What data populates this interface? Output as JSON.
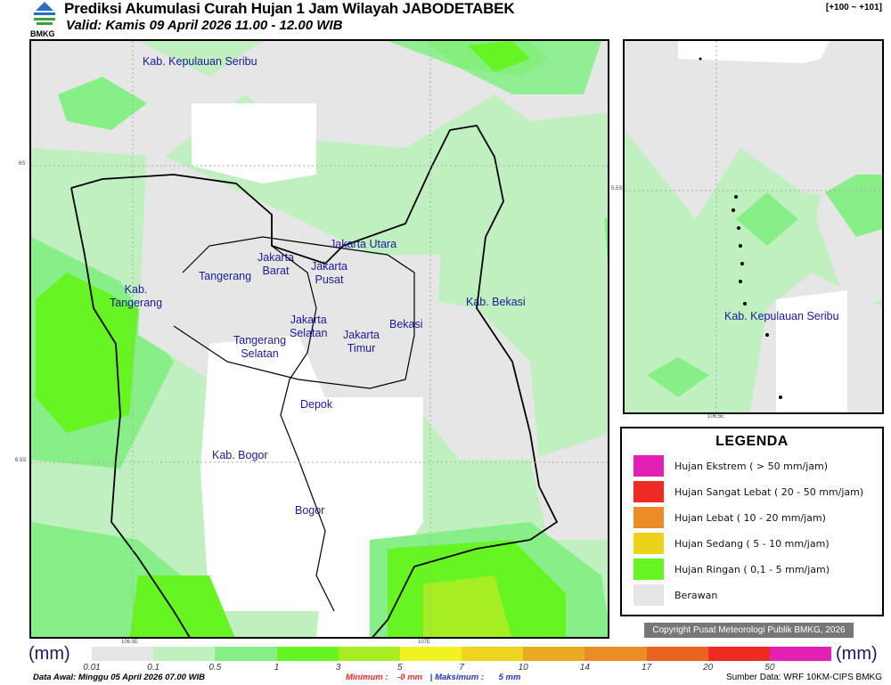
{
  "header": {
    "title": "Prediksi Akumulasi Curah Hujan 1 Jam Wilayah JABODETABEK",
    "valid": "Valid: Kamis 09 April 2026 11.00 - 12.00 WIB",
    "code": "[+100 ~ +101]",
    "logo_text": "BMKG"
  },
  "main_map": {
    "regions": [
      "Kab. Kepulauan Seribu",
      "Jakarta Utara",
      "Jakarta\nBarat",
      "Jakarta\nPusat",
      "Tangerang",
      "Kab.\nTangerang",
      "Jakarta\nSelatan",
      "Jakarta\nTimur",
      "Bekasi",
      "Kab. Bekasi",
      "Tangerang\nSelatan",
      "Depok",
      "Kab. Bogor",
      "Bogor"
    ],
    "lat_ticks": [
      "6S",
      "6.5S"
    ],
    "lon_ticks": [
      "106.5E",
      "107E"
    ]
  },
  "inset_map": {
    "region": "Kab. Kepulauan Seribu",
    "lat_tick": "5.5S",
    "lon_tick": "106.5E"
  },
  "legend": {
    "title": "LEGENDA",
    "items": [
      {
        "label": "Hujan Ekstrem ( > 50 mm/jam)",
        "color": "#e41fb4"
      },
      {
        "label": "Hujan Sangat Lebat ( 20 - 50 mm/jam)",
        "color": "#ee2a22"
      },
      {
        "label": "Hujan Lebat ( 10 - 20 mm/jam)",
        "color": "#ec8c24"
      },
      {
        "label": "Hujan Sedang ( 5 - 10 mm/jam)",
        "color": "#eed21a"
      },
      {
        "label": "Hujan Ringan ( 0,1 - 5 mm/jam)",
        "color": "#66f422"
      },
      {
        "label": "Berawan",
        "color": "#e6e6e6"
      }
    ]
  },
  "copyright": "Copyright Pusat Meteorologi Publik BMKG, 2026",
  "colorbar": {
    "unit": "(mm)",
    "labels": [
      "0.01",
      "0.1",
      "0.5",
      "1",
      "3",
      "5",
      "7",
      "10",
      "14",
      "17",
      "20",
      "50"
    ],
    "colors": [
      "#e6e6e6",
      "#c0f0c0",
      "#88ee88",
      "#66f422",
      "#a6ee22",
      "#f2f222",
      "#f0d420",
      "#e8aa20",
      "#ec8c24",
      "#e86420",
      "#ee2a22",
      "#e41fb4"
    ]
  },
  "footer": {
    "data_awal": "Data Awal: Minggu 05 April 2026 07.00 WIB",
    "min_label": "Minimum :",
    "min_value": "-0 mm",
    "sep": "|",
    "max_label": "Maksimum :",
    "max_value": "5 mm",
    "source": "Sumber Data: WRF 10KM-CIPS BMKG"
  }
}
